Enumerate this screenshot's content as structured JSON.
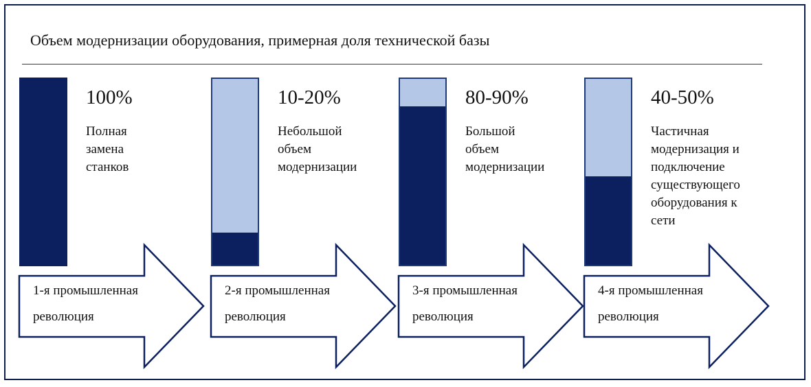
{
  "title": "Объем модернизации оборудования, примерная доля технической базы",
  "colors": {
    "dark": "#0c2060",
    "light": "#b4c7e7",
    "frame": "#0f1d4a",
    "arrow_stroke": "#0c2060"
  },
  "stages": [
    {
      "percent_label": "100%",
      "modernization_share": 1.0,
      "description_lines": [
        "Полная",
        "замена",
        "станков"
      ],
      "arrow_lines": [
        "1-я промышленная",
        "революция"
      ]
    },
    {
      "percent_label": "10-20%",
      "modernization_share": 0.17,
      "description_lines": [
        "Небольшой",
        "объем",
        "модернизации"
      ],
      "arrow_lines": [
        "2-я промышленная",
        "революция"
      ]
    },
    {
      "percent_label": "80-90%",
      "modernization_share": 0.84,
      "description_lines": [
        "Большой",
        "объем",
        "модернизации"
      ],
      "arrow_lines": [
        "3-я промышленная",
        "революция"
      ]
    },
    {
      "percent_label": "40-50%",
      "modernization_share": 0.47,
      "description_lines": [
        "Частичная",
        "модернизация и",
        "подключение",
        "существующего",
        "оборудования к",
        "сети"
      ],
      "arrow_lines": [
        "4-я промышленная",
        "революция"
      ]
    }
  ]
}
